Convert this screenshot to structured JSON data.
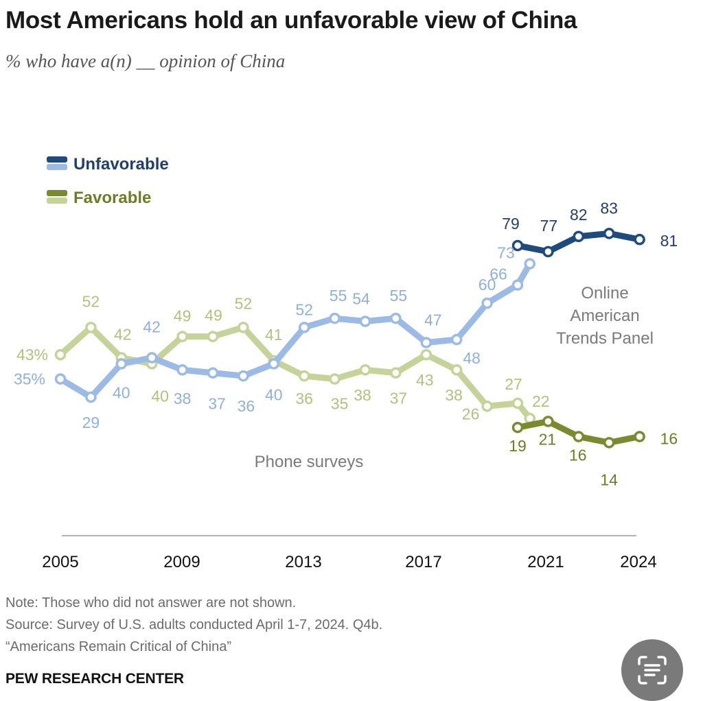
{
  "title": "Most Americans hold an unfavorable view of China",
  "subtitle": "% who have a(n) __ opinion of China",
  "footer": {
    "note": "Note: Those who did not answer are not shown.",
    "source": "Source: Survey of U.S. adults conducted April 1-7, 2024. Q4b.",
    "report": "“Americans Remain Critical of China”",
    "brand": "PEW RESEARCH CENTER"
  },
  "scan_button": {
    "icon": "text-scan-icon"
  },
  "chart_data": {
    "type": "line",
    "x_range": [
      2005,
      2024
    ],
    "x_ticks": [
      "2005",
      "2009",
      "2013",
      "2017",
      "2021",
      "2024"
    ],
    "legend": {
      "placement": "top-left",
      "entries": [
        "Unfavorable",
        "Favorable"
      ]
    },
    "annotations": {
      "phone": "Phone surveys",
      "online": [
        "Online",
        "American",
        "Trends Panel"
      ]
    },
    "grid": false,
    "colors": {
      "unfavorable_phone": "#9bbbe6",
      "unfavorable_online": "#1f4a7c",
      "favorable_phone": "#c5d39a",
      "favorable_online": "#7a8a2e",
      "unfavorable_label": "#8fb0de",
      "favorable_label": "#b3c07e",
      "unfavorable_online_label": "#1f3f6e",
      "favorable_online_label": "#6d7d26"
    },
    "series": [
      {
        "name": "Unfavorable",
        "mode": "Phone surveys",
        "x": [
          2005,
          2006,
          2007,
          2008,
          2009,
          2010,
          2011,
          2012,
          2013,
          2014,
          2015,
          2016,
          2017,
          2018,
          2019,
          2020,
          2020.4
        ],
        "values": [
          35,
          29,
          40,
          42,
          38,
          37,
          36,
          40,
          52,
          55,
          54,
          55,
          47,
          48,
          60,
          66,
          73
        ],
        "labels": [
          "35%",
          "29",
          "40",
          "42",
          "38",
          "37",
          "36",
          "40",
          "52",
          "55",
          "54",
          "55",
          "47",
          "48",
          "60",
          "66",
          "73"
        ]
      },
      {
        "name": "Unfavorable",
        "mode": "Online",
        "x": [
          2020,
          2021,
          2022,
          2023,
          2024
        ],
        "values": [
          79,
          77,
          82,
          83,
          81
        ],
        "labels": [
          "79",
          "77",
          "82",
          "83",
          "81"
        ]
      },
      {
        "name": "Favorable",
        "mode": "Phone surveys",
        "x": [
          2005,
          2006,
          2007,
          2008,
          2009,
          2010,
          2011,
          2012,
          2013,
          2014,
          2015,
          2016,
          2017,
          2018,
          2019,
          2020,
          2020.4
        ],
        "values": [
          43,
          52,
          42,
          40,
          49,
          49,
          52,
          41,
          36,
          35,
          38,
          37,
          43,
          38,
          26,
          27,
          22
        ],
        "labels": [
          "43%",
          "52",
          "42",
          "40",
          "49",
          "49",
          "52",
          "41",
          "36",
          "35",
          "38",
          "37",
          "43",
          "38",
          "26",
          "27",
          "22"
        ]
      },
      {
        "name": "Favorable",
        "mode": "Online",
        "x": [
          2020,
          2021,
          2022,
          2023,
          2024
        ],
        "values": [
          19,
          21,
          16,
          14,
          16
        ],
        "labels": [
          "19",
          "21",
          "16",
          "14",
          "16"
        ]
      }
    ]
  }
}
